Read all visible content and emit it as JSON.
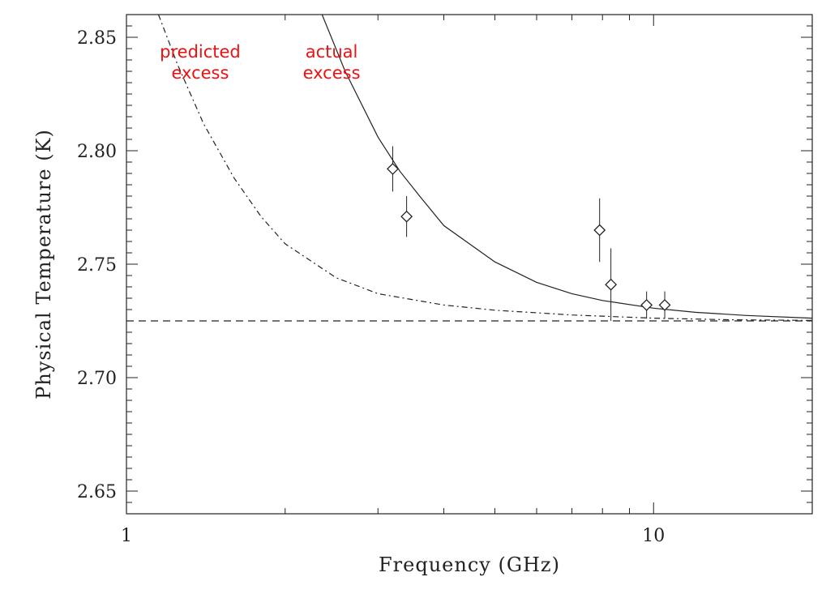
{
  "chart_data": {
    "type": "scatter",
    "xlabel": "Frequency (GHz)",
    "ylabel": "Physical Temperature (K)",
    "xscale": "log",
    "xlim": [
      1,
      20
    ],
    "ylim": [
      2.64,
      2.86
    ],
    "x_ticks": [
      {
        "value": 1,
        "label": "1"
      },
      {
        "value": 10,
        "label": "10"
      }
    ],
    "y_ticks": [
      {
        "value": 2.65,
        "label": "2.65"
      },
      {
        "value": 2.7,
        "label": "2.70"
      },
      {
        "value": 2.75,
        "label": "2.75"
      },
      {
        "value": 2.8,
        "label": "2.80"
      },
      {
        "value": 2.85,
        "label": "2.85"
      }
    ],
    "grid": false,
    "legend": "none",
    "baseline": {
      "style": "dashed",
      "y": 2.725
    },
    "curves": [
      {
        "style": "dash-dot",
        "points": [
          [
            1.15,
            2.86
          ],
          [
            1.25,
            2.838
          ],
          [
            1.4,
            2.812
          ],
          [
            1.6,
            2.788
          ],
          [
            1.8,
            2.771
          ],
          [
            2.0,
            2.759
          ],
          [
            2.5,
            2.744
          ],
          [
            3.0,
            2.737
          ],
          [
            4.0,
            2.732
          ],
          [
            5.0,
            2.7297
          ],
          [
            7.0,
            2.7276
          ],
          [
            10.0,
            2.7262
          ],
          [
            14.0,
            2.7255
          ],
          [
            20.0,
            2.7252
          ]
        ]
      },
      {
        "style": "solid",
        "points": [
          [
            2.35,
            2.86
          ],
          [
            2.6,
            2.835
          ],
          [
            3.0,
            2.806
          ],
          [
            3.3,
            2.791
          ],
          [
            3.6,
            2.78
          ],
          [
            4.0,
            2.767
          ],
          [
            5.0,
            2.751
          ],
          [
            6.0,
            2.742
          ],
          [
            7.0,
            2.737
          ],
          [
            8.0,
            2.734
          ],
          [
            10.0,
            2.7306
          ],
          [
            12.0,
            2.7288
          ],
          [
            15.0,
            2.7274
          ],
          [
            20.0,
            2.7262
          ]
        ]
      }
    ],
    "points": [
      {
        "x": 3.2,
        "y": 2.792,
        "err_low": 0.01,
        "err_high": 0.01
      },
      {
        "x": 3.4,
        "y": 2.771,
        "err_low": 0.009,
        "err_high": 0.009
      },
      {
        "x": 7.9,
        "y": 2.765,
        "err_low": 0.014,
        "err_high": 0.014
      },
      {
        "x": 8.3,
        "y": 2.741,
        "err_low": 0.016,
        "err_high": 0.016
      },
      {
        "x": 9.7,
        "y": 2.732,
        "err_low": 0.006,
        "err_high": 0.006
      },
      {
        "x": 10.5,
        "y": 2.732,
        "err_low": 0.006,
        "err_high": 0.006
      }
    ],
    "annotations": [
      {
        "lines": [
          "predicted",
          "excess"
        ],
        "color": "#ee1111",
        "x": 1.38,
        "y": 2.841
      },
      {
        "lines": [
          "actual",
          "excess"
        ],
        "color": "#ee1111",
        "x": 2.45,
        "y": 2.841
      }
    ]
  }
}
